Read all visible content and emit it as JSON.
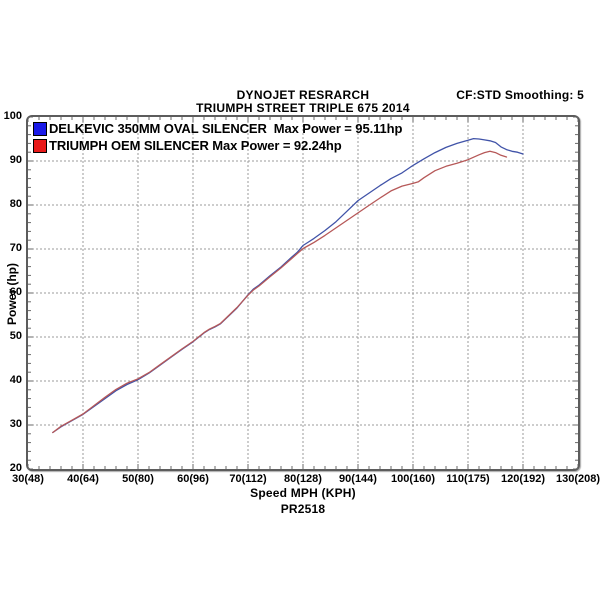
{
  "header": {
    "title_line1": "DYNOJET RESRARCH",
    "title_line2": "TRIUMPH STREET TRIPLE 675 2014",
    "smoothing": "CF:STD Smoothing: 5"
  },
  "legend": [
    {
      "label": "DELKEVIC 350MM OVAL SILENCER  Max Power = 95.11hp",
      "swatch_color": "#1a1ae8",
      "series_id": "delkevic"
    },
    {
      "label": "TRIUMPH OEM SILENCER Max Power = 92.24hp",
      "swatch_color": "#e81a1a",
      "series_id": "oem"
    }
  ],
  "axes": {
    "x": {
      "label": "Speed MPH (KPH)",
      "min": 30,
      "max": 130,
      "major_step": 10,
      "minor_step": 2,
      "tick_labels": [
        "30(48)",
        "40(64)",
        "50(80)",
        "60(96)",
        "70(112)",
        "80(128)",
        "90(144)",
        "100(160)",
        "110(175)",
        "120(192)",
        "130(208)"
      ]
    },
    "y": {
      "label": "Power (hp)",
      "min": 20,
      "max": 100,
      "major_step": 10,
      "minor_step": 2,
      "tick_labels": [
        "20",
        "30",
        "40",
        "50",
        "60",
        "70",
        "80",
        "90",
        "100"
      ]
    }
  },
  "footer": {
    "run_id": "PR2518"
  },
  "chart_data": {
    "type": "line",
    "title": "DYNOJET RESRARCH",
    "subtitle": "TRIUMPH STREET TRIPLE 675 2014",
    "xlabel": "Speed MPH (KPH)",
    "ylabel": "Power (hp)",
    "xlim": [
      30,
      130
    ],
    "ylim": [
      20,
      100
    ],
    "grid": "major dashed, minor ticks every 2 units on all borders",
    "legend_position": "top-left inside plot",
    "smoothing": "CF:STD Smoothing: 5",
    "series": [
      {
        "id": "delkevic",
        "name": "DELKEVIC 350MM OVAL SILENCER",
        "max_power_hp": 95.11,
        "color": "#4053a8",
        "points": [
          [
            34.5,
            28.3
          ],
          [
            36,
            29.6
          ],
          [
            38,
            31.0
          ],
          [
            40,
            32.4
          ],
          [
            42,
            34.2
          ],
          [
            44,
            36.0
          ],
          [
            46,
            37.8
          ],
          [
            48,
            39.2
          ],
          [
            50,
            40.3
          ],
          [
            52,
            41.8
          ],
          [
            54,
            43.6
          ],
          [
            56,
            45.4
          ],
          [
            58,
            47.2
          ],
          [
            60,
            48.9
          ],
          [
            62,
            50.9
          ],
          [
            63,
            51.7
          ],
          [
            64,
            52.3
          ],
          [
            65,
            53.0
          ],
          [
            66,
            54.2
          ],
          [
            68,
            56.6
          ],
          [
            70,
            59.6
          ],
          [
            71,
            60.9
          ],
          [
            72,
            61.8
          ],
          [
            74,
            63.9
          ],
          [
            76,
            65.9
          ],
          [
            78,
            68.2
          ],
          [
            79,
            69.3
          ],
          [
            80,
            70.8
          ],
          [
            81,
            71.6
          ],
          [
            82,
            72.4
          ],
          [
            84,
            74.2
          ],
          [
            86,
            76.2
          ],
          [
            88,
            78.6
          ],
          [
            90,
            81.0
          ],
          [
            92,
            82.7
          ],
          [
            94,
            84.4
          ],
          [
            96,
            86.0
          ],
          [
            98,
            87.3
          ],
          [
            100,
            89.0
          ],
          [
            102,
            90.5
          ],
          [
            104,
            91.9
          ],
          [
            106,
            93.1
          ],
          [
            108,
            94.0
          ],
          [
            110,
            94.7
          ],
          [
            111,
            95.1
          ],
          [
            112,
            95.0
          ],
          [
            113,
            94.8
          ],
          [
            114,
            94.6
          ],
          [
            115,
            94.2
          ],
          [
            116,
            93.2
          ],
          [
            117,
            92.6
          ],
          [
            118,
            92.2
          ],
          [
            119,
            92.0
          ],
          [
            120,
            91.6
          ]
        ]
      },
      {
        "id": "oem",
        "name": "TRIUMPH OEM SILENCER",
        "max_power_hp": 92.24,
        "color": "#b65858",
        "points": [
          [
            34.5,
            28.3
          ],
          [
            36,
            29.7
          ],
          [
            38,
            31.1
          ],
          [
            40,
            32.5
          ],
          [
            42,
            34.4
          ],
          [
            44,
            36.3
          ],
          [
            46,
            38.1
          ],
          [
            48,
            39.5
          ],
          [
            50,
            40.5
          ],
          [
            52,
            41.9
          ],
          [
            54,
            43.7
          ],
          [
            56,
            45.5
          ],
          [
            58,
            47.3
          ],
          [
            60,
            49.0
          ],
          [
            62,
            51.0
          ],
          [
            63,
            51.8
          ],
          [
            64,
            52.4
          ],
          [
            65,
            53.1
          ],
          [
            66,
            54.3
          ],
          [
            68,
            56.7
          ],
          [
            70,
            59.5
          ],
          [
            71,
            60.7
          ],
          [
            72,
            61.6
          ],
          [
            74,
            63.7
          ],
          [
            76,
            65.7
          ],
          [
            78,
            67.9
          ],
          [
            79,
            69.0
          ],
          [
            80,
            70.1
          ],
          [
            81,
            70.8
          ],
          [
            82,
            71.5
          ],
          [
            84,
            73.1
          ],
          [
            86,
            74.8
          ],
          [
            88,
            76.5
          ],
          [
            90,
            78.2
          ],
          [
            92,
            79.9
          ],
          [
            94,
            81.6
          ],
          [
            96,
            83.2
          ],
          [
            98,
            84.3
          ],
          [
            100,
            84.9
          ],
          [
            101,
            85.3
          ],
          [
            102,
            86.2
          ],
          [
            104,
            87.8
          ],
          [
            106,
            88.8
          ],
          [
            108,
            89.5
          ],
          [
            110,
            90.3
          ],
          [
            112,
            91.4
          ],
          [
            113,
            91.9
          ],
          [
            114,
            92.2
          ],
          [
            115,
            91.9
          ],
          [
            116,
            91.3
          ],
          [
            117,
            90.9
          ]
        ]
      }
    ]
  }
}
